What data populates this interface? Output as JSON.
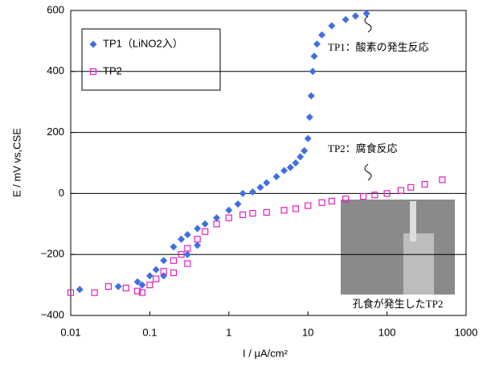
{
  "chart_data": {
    "type": "scatter",
    "xlabel": "I / μA/cm²",
    "ylabel": "E / mV vs,CSE",
    "xscale": "log",
    "xlim": [
      0.01,
      1000
    ],
    "xticks": [
      0.01,
      0.1,
      1,
      10,
      100,
      1000
    ],
    "ylim": [
      -400,
      600
    ],
    "yticks": [
      {
        "value": -400,
        "label": "−400"
      },
      {
        "value": -200,
        "label": "−200"
      },
      0,
      200,
      400,
      600
    ],
    "grid": true,
    "legend": "upper left",
    "series": [
      {
        "name": "TP1（LiNO2入）",
        "color": "#3f6fe0",
        "marker": "diamond",
        "x": [
          0.013,
          0.04,
          0.07,
          0.08,
          0.1,
          0.12,
          0.15,
          0.15,
          0.2,
          0.25,
          0.3,
          0.3,
          0.4,
          0.4,
          0.5,
          0.7,
          1,
          1.3,
          1.5,
          2,
          2.5,
          3,
          4,
          5,
          6,
          7,
          8,
          9,
          10,
          10.5,
          11,
          11.5,
          12,
          13,
          15,
          20,
          30,
          40,
          55
        ],
        "values": [
          -315,
          -305,
          -290,
          -300,
          -270,
          -250,
          -220,
          -270,
          -175,
          -150,
          -135,
          -200,
          -115,
          -170,
          -100,
          -80,
          -55,
          -35,
          0,
          5,
          20,
          35,
          55,
          75,
          85,
          100,
          120,
          140,
          180,
          250,
          320,
          400,
          450,
          490,
          520,
          550,
          570,
          582,
          590
        ]
      },
      {
        "name": "TP2",
        "color": "#e020c0",
        "marker": "square",
        "x": [
          0.01,
          0.02,
          0.03,
          0.05,
          0.07,
          0.08,
          0.1,
          0.12,
          0.15,
          0.2,
          0.2,
          0.25,
          0.3,
          0.3,
          0.4,
          0.5,
          0.7,
          1,
          1.5,
          2,
          3,
          5,
          7,
          10,
          15,
          20,
          30,
          50,
          70,
          100,
          150,
          200,
          300,
          500
        ],
        "values": [
          -325,
          -325,
          -305,
          -310,
          -320,
          -325,
          -300,
          -280,
          -255,
          -220,
          -260,
          -200,
          -180,
          -230,
          -150,
          -125,
          -100,
          -80,
          -70,
          -65,
          -62,
          -55,
          -50,
          -40,
          -30,
          -25,
          -18,
          -10,
          -5,
          0,
          10,
          20,
          30,
          45
        ]
      }
    ],
    "annotations": [
      "TP1：酸素の発生反応",
      "TP2：腐食反応",
      "孔食が発生したTP2"
    ]
  }
}
